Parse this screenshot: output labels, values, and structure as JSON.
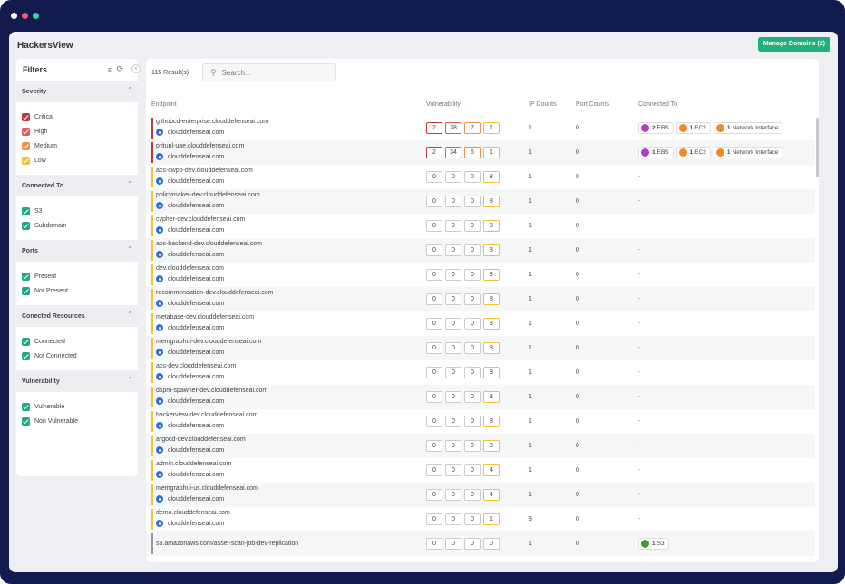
{
  "app": {
    "title": "HackersView",
    "manage_label": "Manage Domains (2)"
  },
  "colors": {
    "critical": "#b83a3a",
    "high": "#e25a5a",
    "medium": "#e8954a",
    "low": "#f2c230",
    "teal": "#1fa98a",
    "gray": "#999999",
    "ebs": "#b33bc9",
    "ec2": "#f08a24",
    "ni": "#f08a24",
    "s3": "#3f9a2e"
  },
  "filters": {
    "title": "Filters",
    "sections": [
      {
        "label": "Severity",
        "options": [
          {
            "label": "Critical",
            "color": "#b83a3a"
          },
          {
            "label": "High",
            "color": "#e25a5a"
          },
          {
            "label": "Medium",
            "color": "#e8954a"
          },
          {
            "label": "Low",
            "color": "#f2c230"
          }
        ]
      },
      {
        "label": "Connected To",
        "options": [
          {
            "label": "S3",
            "color": "#1fa98a"
          },
          {
            "label": "Subdomain",
            "color": "#1fa98a"
          }
        ]
      },
      {
        "label": "Ports",
        "options": [
          {
            "label": "Present",
            "color": "#1fa98a"
          },
          {
            "label": "Not Present",
            "color": "#1fa98a"
          }
        ]
      },
      {
        "label": "Conected Resources",
        "options": [
          {
            "label": "Connected",
            "color": "#1fa98a"
          },
          {
            "label": "Not Connected",
            "color": "#1fa98a"
          }
        ]
      },
      {
        "label": "Vulnerability",
        "options": [
          {
            "label": "Vulnerable",
            "color": "#1fa98a"
          },
          {
            "label": "Non Vulnerable",
            "color": "#1fa98a"
          }
        ]
      }
    ]
  },
  "table": {
    "results": "115 Result(s)",
    "search_placeholder": "Search...",
    "columns": {
      "endpoint": "Endpoint",
      "vulnerability": "Vulnerability",
      "ip": "IP Counts",
      "port": "Port Counts",
      "connected": "Connected To"
    },
    "rows": [
      {
        "endpoint": "githubcd-enterprise.clouddefenseai.com",
        "sub": "clouddefenseai.com",
        "severity": "critical",
        "vulns": [
          2,
          38,
          7,
          1
        ],
        "ip": "1",
        "port": "0",
        "connected": [
          {
            "count": "2",
            "label": "EBS",
            "kind": "ebs"
          },
          {
            "count": "1",
            "label": "EC2",
            "kind": "ec2"
          },
          {
            "count": "1",
            "label": "Network Interface",
            "kind": "ni"
          }
        ]
      },
      {
        "endpoint": "pritunl-uae.clouddefenseai.com",
        "sub": "clouddefenseai.com",
        "severity": "critical",
        "vulns": [
          2,
          34,
          6,
          1
        ],
        "ip": "1",
        "port": "0",
        "connected": [
          {
            "count": "1",
            "label": "EBS",
            "kind": "ebs"
          },
          {
            "count": "1",
            "label": "EC2",
            "kind": "ec2"
          },
          {
            "count": "1",
            "label": "Network Interface",
            "kind": "ni"
          }
        ]
      },
      {
        "endpoint": "acs-cwpp-dev.clouddefenseai.com",
        "sub": "clouddefenseai.com",
        "severity": "low",
        "vulns": [
          0,
          0,
          0,
          8
        ],
        "ip": "1",
        "port": "0",
        "connected": []
      },
      {
        "endpoint": "policymaker-dev.clouddefenseai.com",
        "sub": "clouddefenseai.com",
        "severity": "low",
        "vulns": [
          0,
          0,
          0,
          8
        ],
        "ip": "1",
        "port": "0",
        "connected": []
      },
      {
        "endpoint": "cypher-dev.clouddefenseai.com",
        "sub": "clouddefenseai.com",
        "severity": "low",
        "vulns": [
          0,
          0,
          0,
          8
        ],
        "ip": "1",
        "port": "0",
        "connected": []
      },
      {
        "endpoint": "acs-backend-dev.clouddefenseai.com",
        "sub": "clouddefenseai.com",
        "severity": "low",
        "vulns": [
          0,
          0,
          0,
          8
        ],
        "ip": "1",
        "port": "0",
        "connected": []
      },
      {
        "endpoint": "dev.clouddefenseai.com",
        "sub": "clouddefenseai.com",
        "severity": "low",
        "vulns": [
          0,
          0,
          0,
          8
        ],
        "ip": "1",
        "port": "0",
        "connected": []
      },
      {
        "endpoint": "recommendation-dev.clouddefenseai.com",
        "sub": "clouddefenseai.com",
        "severity": "low",
        "vulns": [
          0,
          0,
          0,
          8
        ],
        "ip": "1",
        "port": "0",
        "connected": []
      },
      {
        "endpoint": "metabase-dev.clouddefenseai.com",
        "sub": "clouddefenseai.com",
        "severity": "low",
        "vulns": [
          0,
          0,
          0,
          8
        ],
        "ip": "1",
        "port": "0",
        "connected": []
      },
      {
        "endpoint": "memgraphui-dev.clouddefenseai.com",
        "sub": "clouddefenseai.com",
        "severity": "low",
        "vulns": [
          0,
          0,
          0,
          8
        ],
        "ip": "1",
        "port": "0",
        "connected": []
      },
      {
        "endpoint": "acs-dev.clouddefenseai.com",
        "sub": "clouddefenseai.com",
        "severity": "low",
        "vulns": [
          0,
          0,
          0,
          8
        ],
        "ip": "1",
        "port": "0",
        "connected": []
      },
      {
        "endpoint": "dspm-spawner-dev.clouddefenseai.com",
        "sub": "clouddefenseai.com",
        "severity": "low",
        "vulns": [
          0,
          0,
          0,
          8
        ],
        "ip": "1",
        "port": "0",
        "connected": []
      },
      {
        "endpoint": "hackerview-dev.clouddefenseai.com",
        "sub": "clouddefenseai.com",
        "severity": "low",
        "vulns": [
          0,
          0,
          0,
          8
        ],
        "ip": "1",
        "port": "0",
        "connected": []
      },
      {
        "endpoint": "argocd-dev.clouddefenseai.com",
        "sub": "clouddefenseai.com",
        "severity": "low",
        "vulns": [
          0,
          0,
          0,
          8
        ],
        "ip": "1",
        "port": "0",
        "connected": []
      },
      {
        "endpoint": "admin.clouddefenseai.com",
        "sub": "clouddefenseai.com",
        "severity": "low",
        "vulns": [
          0,
          0,
          0,
          4
        ],
        "ip": "1",
        "port": "0",
        "connected": []
      },
      {
        "endpoint": "memgraphui-us.clouddefenseai.com",
        "sub": "clouddefenseai.com",
        "severity": "low",
        "vulns": [
          0,
          0,
          0,
          4
        ],
        "ip": "1",
        "port": "0",
        "connected": []
      },
      {
        "endpoint": "demo.clouddefenseai.com",
        "sub": "clouddefenseai.com",
        "severity": "low",
        "vulns": [
          0,
          0,
          0,
          1
        ],
        "ip": "3",
        "port": "0",
        "connected": []
      },
      {
        "endpoint": "s3.amazonaws.com/asset-scan-job-dev-replication",
        "sub": "",
        "severity": "none",
        "vulns": [
          0,
          0,
          0,
          0
        ],
        "ip": "1",
        "port": "0",
        "connected": [
          {
            "count": "1",
            "label": "S3",
            "kind": "s3"
          }
        ]
      }
    ],
    "empty_connected": "-"
  }
}
